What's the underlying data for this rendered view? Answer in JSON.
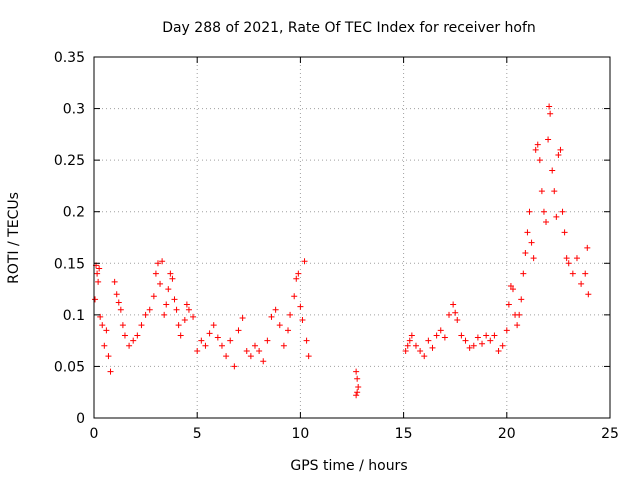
{
  "chart_data": {
    "type": "scatter",
    "title": "Day 288 of 2021, Rate Of TEC Index for receiver hofn",
    "xlabel": "GPS time / hours",
    "ylabel": "ROTI / TECUs",
    "xlim": [
      0,
      25
    ],
    "ylim": [
      0,
      0.35
    ],
    "xticks": [
      "0",
      "5",
      "10",
      "15",
      "20",
      "25"
    ],
    "yticks": [
      "0",
      "0.05",
      "0.1",
      "0.15",
      "0.2",
      "0.25",
      "0.3",
      "0.35"
    ],
    "grid": true,
    "marker": "+",
    "color": "#ff0000",
    "series": [
      {
        "points": [
          [
            0.05,
            0.115
          ],
          [
            0.1,
            0.148
          ],
          [
            0.15,
            0.14
          ],
          [
            0.2,
            0.132
          ],
          [
            0.25,
            0.145
          ],
          [
            0.3,
            0.098
          ],
          [
            0.4,
            0.09
          ],
          [
            0.5,
            0.07
          ],
          [
            0.6,
            0.085
          ],
          [
            0.7,
            0.06
          ],
          [
            0.8,
            0.045
          ],
          [
            1.0,
            0.132
          ],
          [
            1.1,
            0.12
          ],
          [
            1.2,
            0.112
          ],
          [
            1.3,
            0.105
          ],
          [
            1.4,
            0.09
          ],
          [
            1.5,
            0.08
          ],
          [
            1.7,
            0.07
          ],
          [
            1.9,
            0.075
          ],
          [
            2.1,
            0.08
          ],
          [
            2.3,
            0.09
          ],
          [
            2.5,
            0.1
          ],
          [
            2.7,
            0.105
          ],
          [
            2.9,
            0.118
          ],
          [
            3.0,
            0.14
          ],
          [
            3.1,
            0.15
          ],
          [
            3.2,
            0.13
          ],
          [
            3.3,
            0.152
          ],
          [
            3.4,
            0.1
          ],
          [
            3.5,
            0.11
          ],
          [
            3.6,
            0.125
          ],
          [
            3.7,
            0.14
          ],
          [
            3.8,
            0.135
          ],
          [
            3.9,
            0.115
          ],
          [
            4.0,
            0.105
          ],
          [
            4.1,
            0.09
          ],
          [
            4.2,
            0.08
          ],
          [
            4.4,
            0.095
          ],
          [
            4.5,
            0.11
          ],
          [
            4.6,
            0.105
          ],
          [
            4.8,
            0.098
          ],
          [
            5.0,
            0.065
          ],
          [
            5.2,
            0.075
          ],
          [
            5.4,
            0.07
          ],
          [
            5.6,
            0.082
          ],
          [
            5.8,
            0.09
          ],
          [
            6.0,
            0.078
          ],
          [
            6.2,
            0.07
          ],
          [
            6.4,
            0.06
          ],
          [
            6.6,
            0.075
          ],
          [
            6.8,
            0.05
          ],
          [
            7.0,
            0.085
          ],
          [
            7.2,
            0.097
          ],
          [
            7.4,
            0.065
          ],
          [
            7.6,
            0.06
          ],
          [
            7.8,
            0.07
          ],
          [
            8.0,
            0.065
          ],
          [
            8.2,
            0.055
          ],
          [
            8.4,
            0.075
          ],
          [
            8.6,
            0.098
          ],
          [
            8.8,
            0.105
          ],
          [
            9.0,
            0.09
          ],
          [
            9.2,
            0.07
          ],
          [
            9.4,
            0.085
          ],
          [
            9.5,
            0.1
          ],
          [
            9.7,
            0.118
          ],
          [
            9.8,
            0.135
          ],
          [
            9.9,
            0.14
          ],
          [
            10.0,
            0.108
          ],
          [
            10.1,
            0.095
          ],
          [
            10.2,
            0.152
          ],
          [
            10.3,
            0.075
          ],
          [
            10.4,
            0.06
          ],
          [
            12.7,
            0.045
          ],
          [
            12.75,
            0.038
          ],
          [
            12.8,
            0.03
          ],
          [
            12.7,
            0.022
          ],
          [
            12.75,
            0.025
          ],
          [
            15.1,
            0.065
          ],
          [
            15.2,
            0.07
          ],
          [
            15.3,
            0.075
          ],
          [
            15.4,
            0.08
          ],
          [
            15.6,
            0.07
          ],
          [
            15.8,
            0.065
          ],
          [
            16.0,
            0.06
          ],
          [
            16.2,
            0.075
          ],
          [
            16.4,
            0.068
          ],
          [
            16.6,
            0.08
          ],
          [
            16.8,
            0.085
          ],
          [
            17.0,
            0.078
          ],
          [
            17.2,
            0.1
          ],
          [
            17.4,
            0.11
          ],
          [
            17.5,
            0.102
          ],
          [
            17.6,
            0.095
          ],
          [
            17.8,
            0.08
          ],
          [
            18.0,
            0.075
          ],
          [
            18.2,
            0.068
          ],
          [
            18.4,
            0.07
          ],
          [
            18.6,
            0.078
          ],
          [
            18.8,
            0.072
          ],
          [
            19.0,
            0.08
          ],
          [
            19.2,
            0.075
          ],
          [
            19.4,
            0.08
          ],
          [
            19.6,
            0.065
          ],
          [
            19.8,
            0.07
          ],
          [
            20.0,
            0.085
          ],
          [
            20.1,
            0.11
          ],
          [
            20.2,
            0.128
          ],
          [
            20.3,
            0.125
          ],
          [
            20.4,
            0.1
          ],
          [
            20.5,
            0.09
          ],
          [
            20.6,
            0.1
          ],
          [
            20.7,
            0.115
          ],
          [
            20.8,
            0.14
          ],
          [
            20.9,
            0.16
          ],
          [
            21.0,
            0.18
          ],
          [
            21.1,
            0.2
          ],
          [
            21.2,
            0.17
          ],
          [
            21.3,
            0.155
          ],
          [
            21.4,
            0.26
          ],
          [
            21.5,
            0.265
          ],
          [
            21.6,
            0.25
          ],
          [
            21.7,
            0.22
          ],
          [
            21.8,
            0.2
          ],
          [
            21.9,
            0.19
          ],
          [
            22.0,
            0.27
          ],
          [
            22.05,
            0.302
          ],
          [
            22.1,
            0.295
          ],
          [
            22.2,
            0.24
          ],
          [
            22.3,
            0.22
          ],
          [
            22.4,
            0.195
          ],
          [
            22.5,
            0.255
          ],
          [
            22.6,
            0.26
          ],
          [
            22.7,
            0.2
          ],
          [
            22.8,
            0.18
          ],
          [
            22.9,
            0.155
          ],
          [
            23.0,
            0.15
          ],
          [
            23.2,
            0.14
          ],
          [
            23.4,
            0.155
          ],
          [
            23.6,
            0.13
          ],
          [
            23.8,
            0.14
          ],
          [
            23.9,
            0.165
          ],
          [
            23.95,
            0.12
          ]
        ]
      }
    ]
  }
}
